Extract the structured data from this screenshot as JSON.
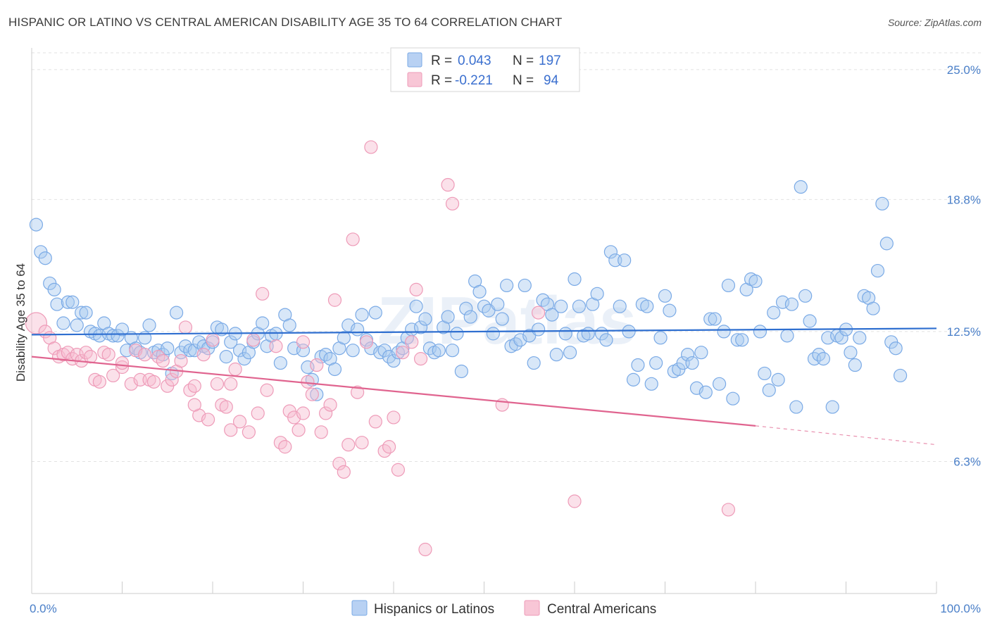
{
  "title": "HISPANIC OR LATINO VS CENTRAL AMERICAN DISABILITY AGE 35 TO 64 CORRELATION CHART",
  "source": "Source: ZipAtlas.com",
  "watermark": "ZIPatlas",
  "chart_data": {
    "type": "scatter",
    "ylabel": "Disability Age 35 to 64",
    "xlim": [
      0,
      100
    ],
    "ylim": [
      0,
      25.8
    ],
    "x_tick_labels": [
      "0.0%",
      "100.0%"
    ],
    "y_ticks": [
      {
        "value": 25.0,
        "label": "25.0%"
      },
      {
        "value": 18.8,
        "label": "18.8%"
      },
      {
        "value": 12.5,
        "label": "12.5%"
      },
      {
        "value": 6.3,
        "label": "6.3%"
      }
    ],
    "legend": {
      "r_label": "R =",
      "n_label": "N =",
      "rows": [
        {
          "r": "0.043",
          "n": "197"
        },
        {
          "r": "-0.221",
          "n": "94"
        }
      ]
    },
    "series": [
      {
        "name": "Hispanics or Latinos",
        "color": "#7aaae6",
        "fill": "#a9c9f0",
        "line_color": "#2f6fd0",
        "trend": {
          "x0": 0,
          "y0": 12.35,
          "x1": 100,
          "y1": 12.65
        },
        "points": [
          [
            0.5,
            17.6
          ],
          [
            1,
            16.3
          ],
          [
            1.5,
            16
          ],
          [
            2,
            14.8
          ],
          [
            2.5,
            14.5
          ],
          [
            2.8,
            13.8
          ],
          [
            3.5,
            12.9
          ],
          [
            4,
            13.9
          ],
          [
            4.5,
            13.9
          ],
          [
            5,
            12.8
          ],
          [
            5.5,
            13.4
          ],
          [
            6,
            13.4
          ],
          [
            6.5,
            12.5
          ],
          [
            7,
            12.4
          ],
          [
            7.5,
            12.3
          ],
          [
            8,
            12.9
          ],
          [
            8.5,
            12.4
          ],
          [
            9,
            12.3
          ],
          [
            9.5,
            12.3
          ],
          [
            10,
            12.6
          ],
          [
            10.5,
            11.6
          ],
          [
            11,
            12.2
          ],
          [
            11.5,
            11.7
          ],
          [
            12,
            11.5
          ],
          [
            12.5,
            12.2
          ],
          [
            13,
            12.8
          ],
          [
            13.5,
            11.5
          ],
          [
            14,
            11.6
          ],
          [
            14.5,
            11.4
          ],
          [
            15,
            11.7
          ],
          [
            15.5,
            10.5
          ],
          [
            16,
            13.4
          ],
          [
            16.5,
            11.5
          ],
          [
            17,
            11.8
          ],
          [
            17.5,
            11.6
          ],
          [
            18,
            11.6
          ],
          [
            18.5,
            12.0
          ],
          [
            19,
            11.8
          ],
          [
            19.5,
            11.7
          ],
          [
            20,
            12.0
          ],
          [
            20.5,
            12.7
          ],
          [
            21,
            12.6
          ],
          [
            21.5,
            11.3
          ],
          [
            22,
            12.0
          ],
          [
            22.5,
            12.4
          ],
          [
            23,
            11.6
          ],
          [
            23.5,
            11.2
          ],
          [
            24,
            11.5
          ],
          [
            24.5,
            12.0
          ],
          [
            25,
            12.4
          ],
          [
            25.5,
            12.9
          ],
          [
            26,
            11.8
          ],
          [
            26.5,
            12.3
          ],
          [
            27,
            12.4
          ],
          [
            27.5,
            11.0
          ],
          [
            28,
            13.3
          ],
          [
            28.5,
            12.8
          ],
          [
            29,
            11.7
          ],
          [
            30,
            11.6
          ],
          [
            30.5,
            10.8
          ],
          [
            31,
            10.2
          ],
          [
            31.5,
            9.5
          ],
          [
            32,
            11.3
          ],
          [
            32.5,
            11.4
          ],
          [
            33,
            11.2
          ],
          [
            33.5,
            10.7
          ],
          [
            34,
            11.7
          ],
          [
            34.5,
            12.2
          ],
          [
            35,
            12.8
          ],
          [
            35.5,
            11.6
          ],
          [
            36,
            12.6
          ],
          [
            36.5,
            13.3
          ],
          [
            37,
            12.1
          ],
          [
            37.5,
            11.7
          ],
          [
            38,
            13.4
          ],
          [
            38.5,
            11.5
          ],
          [
            39,
            11.6
          ],
          [
            39.5,
            11.3
          ],
          [
            40,
            11.1
          ],
          [
            40.5,
            11.5
          ],
          [
            41,
            11.7
          ],
          [
            41.5,
            12.2
          ],
          [
            42,
            12.6
          ],
          [
            42.5,
            13.7
          ],
          [
            43,
            12.7
          ],
          [
            43.5,
            13.1
          ],
          [
            44,
            11.7
          ],
          [
            44.5,
            11.5
          ],
          [
            45,
            11.6
          ],
          [
            45.5,
            12.7
          ],
          [
            46,
            13.2
          ],
          [
            46.5,
            11.6
          ],
          [
            47,
            12.4
          ],
          [
            47.5,
            10.6
          ],
          [
            48,
            13.6
          ],
          [
            48.5,
            13.2
          ],
          [
            49,
            14.9
          ],
          [
            49.5,
            14.4
          ],
          [
            50,
            13.7
          ],
          [
            50.5,
            13.5
          ],
          [
            51,
            12.4
          ],
          [
            51.5,
            13.8
          ],
          [
            52,
            13.1
          ],
          [
            52.5,
            14.7
          ],
          [
            53,
            11.8
          ],
          [
            53.5,
            11.9
          ],
          [
            54,
            12.1
          ],
          [
            54.5,
            14.7
          ],
          [
            55,
            12.3
          ],
          [
            55.5,
            11.0
          ],
          [
            56,
            12.6
          ],
          [
            56.5,
            14.0
          ],
          [
            57,
            13.8
          ],
          [
            57.5,
            13.3
          ],
          [
            58,
            11.4
          ],
          [
            58.5,
            13.7
          ],
          [
            59,
            12.4
          ],
          [
            59.5,
            11.5
          ],
          [
            60,
            15.0
          ],
          [
            60.5,
            13.7
          ],
          [
            61,
            12.3
          ],
          [
            61.5,
            12.4
          ],
          [
            62,
            13.8
          ],
          [
            62.5,
            14.3
          ],
          [
            63,
            12.4
          ],
          [
            63.5,
            12.1
          ],
          [
            64,
            16.3
          ],
          [
            64.5,
            15.9
          ],
          [
            65,
            13.7
          ],
          [
            65.5,
            15.9
          ],
          [
            66,
            12.5
          ],
          [
            66.5,
            10.2
          ],
          [
            67,
            10.9
          ],
          [
            67.5,
            13.8
          ],
          [
            68,
            13.7
          ],
          [
            68.5,
            10.0
          ],
          [
            69,
            11.0
          ],
          [
            69.5,
            12.2
          ],
          [
            70,
            14.2
          ],
          [
            70.5,
            13.5
          ],
          [
            71,
            10.6
          ],
          [
            71.5,
            10.7
          ],
          [
            72,
            11.0
          ],
          [
            72.5,
            11.4
          ],
          [
            73,
            11.0
          ],
          [
            73.5,
            9.8
          ],
          [
            74,
            11.5
          ],
          [
            74.5,
            9.6
          ],
          [
            75,
            13.1
          ],
          [
            75.5,
            13.1
          ],
          [
            76,
            10.0
          ],
          [
            76.5,
            12.5
          ],
          [
            77,
            14.7
          ],
          [
            77.5,
            9.3
          ],
          [
            78,
            12.1
          ],
          [
            78.5,
            12.1
          ],
          [
            79,
            14.5
          ],
          [
            79.5,
            15.0
          ],
          [
            80,
            14.9
          ],
          [
            80.5,
            12.5
          ],
          [
            81,
            10.5
          ],
          [
            81.5,
            9.7
          ],
          [
            82,
            13.4
          ],
          [
            82.5,
            10.2
          ],
          [
            83,
            13.9
          ],
          [
            83.5,
            12.3
          ],
          [
            84,
            13.8
          ],
          [
            84.5,
            8.9
          ],
          [
            85,
            19.4
          ],
          [
            85.5,
            14.2
          ],
          [
            86,
            13.0
          ],
          [
            86.5,
            11.2
          ],
          [
            87,
            11.4
          ],
          [
            87.5,
            11.2
          ],
          [
            88,
            12.2
          ],
          [
            88.5,
            8.9
          ],
          [
            89,
            12.3
          ],
          [
            89.5,
            12.2
          ],
          [
            90,
            12.6
          ],
          [
            90.5,
            11.5
          ],
          [
            91,
            10.9
          ],
          [
            91.5,
            12.2
          ],
          [
            92,
            14.2
          ],
          [
            92.5,
            14.1
          ],
          [
            93,
            13.6
          ],
          [
            93.5,
            15.4
          ],
          [
            94,
            18.6
          ],
          [
            94.5,
            16.7
          ],
          [
            95,
            12.0
          ],
          [
            95.5,
            11.7
          ],
          [
            96,
            10.4
          ]
        ]
      },
      {
        "name": "Central Americans",
        "color": "#ee9bb8",
        "fill": "#f6bcd0",
        "line_color": "#e0648f",
        "trend": {
          "x0": 0,
          "y0": 11.3,
          "x1": 80,
          "y1": 8.0
        },
        "trend_dashed": {
          "x0": 80,
          "y0": 8.0,
          "x1": 100,
          "y1": 7.1
        },
        "points": [
          [
            0.5,
            12.9
          ],
          [
            1.5,
            12.5
          ],
          [
            2,
            12.2
          ],
          [
            2.5,
            11.7
          ],
          [
            3,
            11.3
          ],
          [
            3.5,
            11.4
          ],
          [
            4,
            11.5
          ],
          [
            4.5,
            11.2
          ],
          [
            5,
            11.4
          ],
          [
            5.5,
            11.1
          ],
          [
            6,
            11.5
          ],
          [
            6.5,
            11.3
          ],
          [
            7,
            10.2
          ],
          [
            7.5,
            10.1
          ],
          [
            8,
            11.5
          ],
          [
            8.5,
            11.4
          ],
          [
            9,
            10.4
          ],
          [
            10,
            10.8
          ],
          [
            11,
            10.0
          ],
          [
            11.5,
            11.6
          ],
          [
            12,
            10.2
          ],
          [
            12.5,
            11.4
          ],
          [
            13,
            10.2
          ],
          [
            13.5,
            10.1
          ],
          [
            14,
            11.3
          ],
          [
            14.5,
            11.1
          ],
          [
            15,
            9.9
          ],
          [
            15.5,
            10.2
          ],
          [
            16,
            10.6
          ],
          [
            16.5,
            11.1
          ],
          [
            17,
            12.7
          ],
          [
            17.5,
            9.7
          ],
          [
            18,
            9.9
          ],
          [
            18.5,
            8.5
          ],
          [
            19,
            11.4
          ],
          [
            19.5,
            8.3
          ],
          [
            20,
            12.1
          ],
          [
            20.5,
            10.0
          ],
          [
            21,
            9.0
          ],
          [
            21.5,
            8.9
          ],
          [
            22,
            7.8
          ],
          [
            22.5,
            10.7
          ],
          [
            23,
            8.2
          ],
          [
            24,
            7.7
          ],
          [
            24.5,
            12.1
          ],
          [
            25,
            8.6
          ],
          [
            25.5,
            14.3
          ],
          [
            26,
            9.7
          ],
          [
            27,
            11.8
          ],
          [
            27.5,
            7.2
          ],
          [
            28,
            7.0
          ],
          [
            28.5,
            8.7
          ],
          [
            29,
            8.4
          ],
          [
            29.5,
            7.8
          ],
          [
            30,
            8.6
          ],
          [
            30.5,
            10.1
          ],
          [
            31,
            9.5
          ],
          [
            31.5,
            10.9
          ],
          [
            32,
            7.7
          ],
          [
            32.5,
            8.6
          ],
          [
            33,
            9.0
          ],
          [
            33.5,
            14.0
          ],
          [
            34,
            6.2
          ],
          [
            34.5,
            5.8
          ],
          [
            35,
            7.1
          ],
          [
            35.5,
            16.9
          ],
          [
            36,
            9.6
          ],
          [
            36.5,
            7.2
          ],
          [
            37,
            12.0
          ],
          [
            37.5,
            21.3
          ],
          [
            38,
            8.2
          ],
          [
            39,
            6.8
          ],
          [
            39.5,
            7.0
          ],
          [
            40,
            8.4
          ],
          [
            40.5,
            5.9
          ],
          [
            41,
            11.5
          ],
          [
            42,
            12.0
          ],
          [
            42.5,
            14.5
          ],
          [
            43,
            11.2
          ],
          [
            43.5,
            2.1
          ],
          [
            46,
            19.5
          ],
          [
            52,
            9.0
          ],
          [
            56,
            13.4
          ],
          [
            60,
            4.4
          ],
          [
            77,
            4.0
          ],
          [
            30,
            12.0
          ],
          [
            22,
            10.0
          ],
          [
            18,
            9.0
          ],
          [
            10,
            11.0
          ],
          [
            46.5,
            18.6
          ]
        ]
      }
    ]
  }
}
